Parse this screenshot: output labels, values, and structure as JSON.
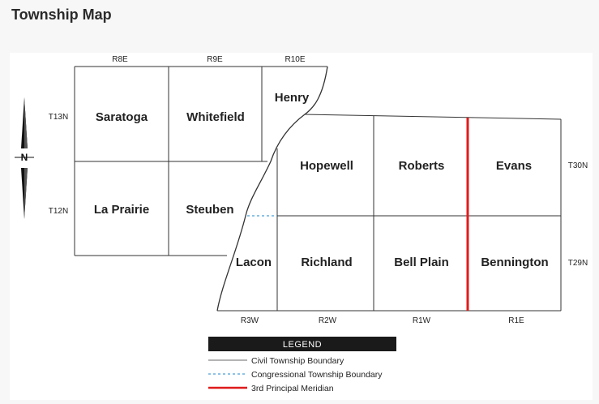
{
  "header": {
    "title": "Township Map"
  },
  "map": {
    "range_labels_top": [
      "R8E",
      "R9E",
      "R10E"
    ],
    "range_labels_bottom": [
      "R3W",
      "R2W",
      "R1W",
      "R1E"
    ],
    "tier_labels_left": [
      "T13N",
      "T12N"
    ],
    "tier_labels_right": [
      "T30N",
      "T29N"
    ],
    "north_arrow": {
      "letter": "N",
      "icon": "north-arrow-icon"
    },
    "townships": {
      "saratoga": "Saratoga",
      "whitefield": "Whitefield",
      "henry": "Henry",
      "la_prairie": "La Prairie",
      "steuben": "Steuben",
      "hopewell": "Hopewell",
      "roberts": "Roberts",
      "evans": "Evans",
      "lacon": "Lacon",
      "richland": "Richland",
      "bell_plain": "Bell Plain",
      "bennington": "Bennington"
    },
    "colors": {
      "boundary": "#333333",
      "congressional": "#4a9fd8",
      "meridian": "#e01b1b",
      "legend_header": "#1a1a1a"
    }
  },
  "legend": {
    "title": "LEGEND",
    "items": [
      {
        "label": "Civil Township Boundary",
        "style": "solid-gray"
      },
      {
        "label": "Congressional Township Boundary",
        "style": "dashed-blue"
      },
      {
        "label": "3rd Principal Meridian",
        "style": "solid-red"
      }
    ]
  }
}
